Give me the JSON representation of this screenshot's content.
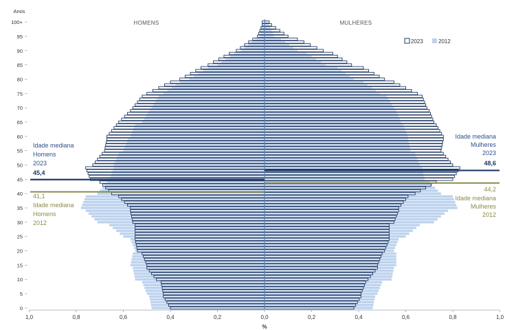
{
  "chart_data": {
    "type": "bar",
    "subtype": "population-pyramid",
    "y_axis_title": "Anos",
    "x_axis_title": "%",
    "left_label": "HOMENS",
    "right_label": "MULHERES",
    "y_ticks": [
      "0",
      "5",
      "10",
      "15",
      "20",
      "25",
      "30",
      "35",
      "40",
      "45",
      "50",
      "55",
      "60",
      "65",
      "70",
      "75",
      "80",
      "85",
      "90",
      "95",
      "100+"
    ],
    "x_tick_labels": [
      "1,0",
      "0,8",
      "0,6",
      "0,4",
      "0,2",
      "0,0",
      "0,2",
      "0,4",
      "0,6",
      "0,8",
      "1,0"
    ],
    "x_range": [
      -1.0,
      1.0
    ],
    "age_range": [
      0,
      100
    ],
    "legend": {
      "placement": "top-right",
      "items": [
        {
          "label": "2023",
          "color": "#ffffff",
          "stroke": "#1f3864"
        },
        {
          "label": "2012",
          "color": "#bdd3ee"
        }
      ]
    },
    "colors": {
      "outline_2023": "#1f3864",
      "fill_2012": "#bdd3ee",
      "median_2023": "#1f3864",
      "median_2012": "#8a8a4c",
      "label_2023": "#2e4e8f",
      "label_2012": "#8a8a4c"
    },
    "medians": [
      {
        "sex": "men",
        "year": "2023",
        "value": 45.4,
        "label_lines": [
          "Idade mediana",
          "Homens",
          "2023"
        ],
        "value_label": "45,4"
      },
      {
        "sex": "men",
        "year": "2012",
        "value": 41.1,
        "label_lines": [
          "Idade mediana",
          "Homens",
          "2012"
        ],
        "value_label": "41,1"
      },
      {
        "sex": "women",
        "year": "2023",
        "value": 48.6,
        "label_lines": [
          "Idade mediana",
          "Mulheres",
          "2023"
        ],
        "value_label": "48,6"
      },
      {
        "sex": "women",
        "year": "2012",
        "value": 44.2,
        "label_lines": [
          "Idade mediana",
          "Mulheres",
          "2012"
        ],
        "value_label": "44,2"
      }
    ],
    "series": [
      {
        "name": "2023",
        "sex": "men",
        "key_ages": [
          0,
          4,
          5,
          9,
          10,
          14,
          15,
          19,
          20,
          24,
          25,
          29,
          30,
          34,
          35,
          39,
          40,
          44,
          45,
          49,
          50,
          54,
          55,
          59,
          60,
          64,
          65,
          69,
          70,
          74,
          75,
          79,
          80,
          84,
          85,
          89,
          90,
          94,
          95,
          99,
          100
        ],
        "key_values": [
          0.4,
          0.43,
          0.43,
          0.44,
          0.46,
          0.5,
          0.5,
          0.52,
          0.54,
          0.55,
          0.55,
          0.55,
          0.56,
          0.57,
          0.57,
          0.62,
          0.65,
          0.7,
          0.74,
          0.76,
          0.73,
          0.69,
          0.68,
          0.67,
          0.67,
          0.63,
          0.62,
          0.57,
          0.56,
          0.52,
          0.5,
          0.4,
          0.36,
          0.27,
          0.24,
          0.15,
          0.12,
          0.05,
          0.03,
          0.01,
          0.01
        ]
      },
      {
        "name": "2023",
        "sex": "women",
        "key_ages": [
          0,
          4,
          5,
          9,
          10,
          14,
          15,
          19,
          20,
          24,
          25,
          29,
          30,
          34,
          35,
          39,
          40,
          44,
          45,
          49,
          50,
          54,
          55,
          59,
          60,
          64,
          65,
          69,
          70,
          74,
          75,
          79,
          80,
          84,
          85,
          89,
          90,
          94,
          95,
          99,
          100
        ],
        "key_values": [
          0.38,
          0.41,
          0.41,
          0.43,
          0.44,
          0.48,
          0.48,
          0.5,
          0.51,
          0.53,
          0.53,
          0.53,
          0.55,
          0.57,
          0.57,
          0.61,
          0.64,
          0.73,
          0.8,
          0.83,
          0.8,
          0.76,
          0.75,
          0.76,
          0.76,
          0.73,
          0.72,
          0.7,
          0.69,
          0.67,
          0.65,
          0.55,
          0.51,
          0.42,
          0.37,
          0.29,
          0.25,
          0.14,
          0.1,
          0.03,
          0.02
        ]
      },
      {
        "name": "2012",
        "sex": "men",
        "key_ages": [
          0,
          4,
          5,
          9,
          10,
          14,
          15,
          19,
          20,
          24,
          25,
          29,
          30,
          34,
          35,
          39,
          40,
          44,
          45,
          49,
          50,
          54,
          55,
          59,
          60,
          64,
          65,
          69,
          70,
          74,
          75,
          79,
          80,
          84,
          85,
          89,
          90,
          94,
          95,
          99,
          100
        ],
        "key_values": [
          0.48,
          0.49,
          0.5,
          0.52,
          0.55,
          0.56,
          0.57,
          0.56,
          0.55,
          0.57,
          0.6,
          0.66,
          0.71,
          0.76,
          0.78,
          0.76,
          0.71,
          0.67,
          0.66,
          0.64,
          0.64,
          0.62,
          0.6,
          0.58,
          0.57,
          0.55,
          0.52,
          0.49,
          0.48,
          0.45,
          0.43,
          0.36,
          0.32,
          0.24,
          0.2,
          0.13,
          0.1,
          0.04,
          0.02,
          0.01,
          0.0
        ]
      },
      {
        "name": "2012",
        "sex": "women",
        "key_ages": [
          0,
          4,
          5,
          9,
          10,
          14,
          15,
          19,
          20,
          24,
          25,
          29,
          30,
          34,
          35,
          39,
          40,
          44,
          45,
          49,
          50,
          54,
          55,
          59,
          60,
          64,
          65,
          69,
          70,
          74,
          75,
          79,
          80,
          84,
          85,
          89,
          90,
          94,
          95,
          99,
          100
        ],
        "key_values": [
          0.46,
          0.47,
          0.48,
          0.5,
          0.54,
          0.55,
          0.56,
          0.56,
          0.55,
          0.57,
          0.6,
          0.66,
          0.72,
          0.78,
          0.82,
          0.8,
          0.75,
          0.7,
          0.68,
          0.67,
          0.66,
          0.64,
          0.62,
          0.61,
          0.61,
          0.59,
          0.58,
          0.56,
          0.55,
          0.52,
          0.49,
          0.42,
          0.38,
          0.31,
          0.26,
          0.18,
          0.14,
          0.07,
          0.04,
          0.02,
          0.01
        ]
      }
    ]
  }
}
